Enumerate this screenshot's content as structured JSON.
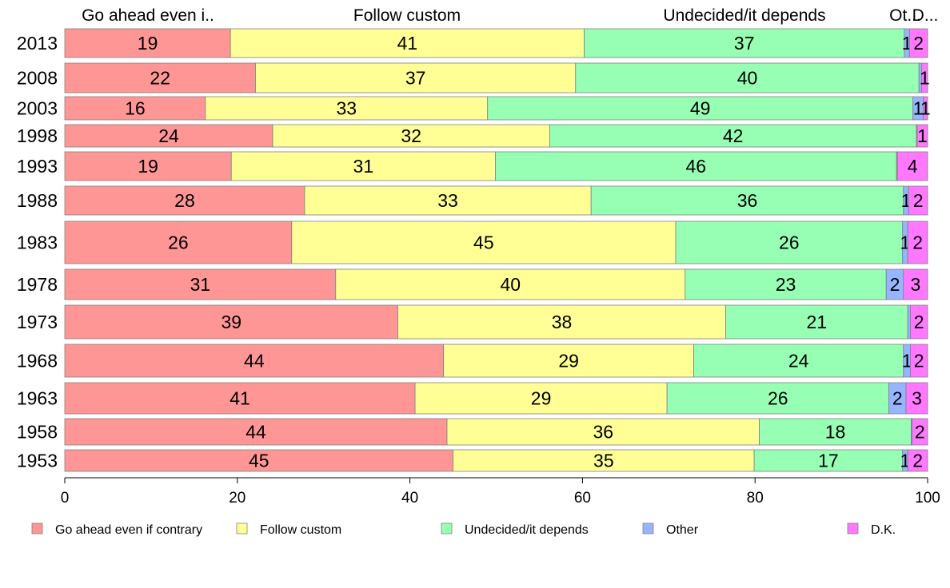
{
  "chart_data": {
    "type": "bar",
    "orientation": "horizontal",
    "stacked": true,
    "variable_width": true,
    "xlim": [
      0,
      100
    ],
    "x_ticks": [
      0,
      20,
      40,
      60,
      80,
      100
    ],
    "x_tick_labels": [
      "0",
      "20",
      "40",
      "60",
      "80",
      "100"
    ],
    "grid": false,
    "legend_position": "bottom",
    "top_labels": [
      "Go ahead even i..",
      "Follow custom",
      "Undecided/it depends",
      "Ot...",
      "D..."
    ],
    "categories": [
      "2013",
      "2008",
      "2003",
      "1998",
      "1993",
      "1988",
      "1983",
      "1978",
      "1973",
      "1968",
      "1963",
      "1958",
      "1953"
    ],
    "series": [
      {
        "name": "Go ahead even if contrary",
        "color": "#FF9696",
        "values": [
          19.2,
          22.1,
          16.3,
          24.1,
          19.3,
          27.8,
          26.3,
          31.4,
          38.6,
          43.9,
          40.6,
          44.3,
          45.0
        ]
      },
      {
        "name": "Follow custom",
        "color": "#FFFF96",
        "values": [
          41.0,
          37.1,
          32.7,
          32.1,
          30.6,
          33.2,
          44.5,
          40.5,
          38.0,
          29.0,
          29.2,
          36.2,
          34.9
        ]
      },
      {
        "name": "Undecided/it depends",
        "color": "#96FFB4",
        "values": [
          37.1,
          39.8,
          49.3,
          42.5,
          46.5,
          36.2,
          26.3,
          23.3,
          21.1,
          24.3,
          25.7,
          17.6,
          17.2
        ]
      },
      {
        "name": "Other",
        "color": "#96B4FF",
        "values": [
          0.6,
          0.3,
          1.2,
          0.1,
          0.1,
          0.6,
          0.6,
          2.0,
          0.3,
          0.8,
          2.0,
          0.1,
          0.6
        ]
      },
      {
        "name": "D.K.",
        "color": "#FF78FF",
        "values": [
          2.1,
          0.7,
          0.5,
          1.2,
          3.5,
          2.2,
          2.3,
          2.8,
          2.0,
          2.0,
          2.5,
          1.8,
          2.3
        ]
      }
    ],
    "data_labels": [
      [
        "19",
        "41",
        "37",
        "1",
        "2"
      ],
      [
        "22",
        "37",
        "40",
        "",
        "1"
      ],
      [
        "16",
        "33",
        "49",
        "1",
        "1"
      ],
      [
        "24",
        "32",
        "42",
        "",
        "1"
      ],
      [
        "19",
        "31",
        "46",
        "",
        "4"
      ],
      [
        "28",
        "33",
        "36",
        "1",
        "2"
      ],
      [
        "26",
        "45",
        "26",
        "1",
        "2"
      ],
      [
        "31",
        "40",
        "23",
        "2",
        "3"
      ],
      [
        "39",
        "38",
        "21",
        "",
        "2"
      ],
      [
        "44",
        "29",
        "24",
        "1",
        "2"
      ],
      [
        "41",
        "29",
        "26",
        "2",
        "3"
      ],
      [
        "44",
        "36",
        "18",
        "",
        "2"
      ],
      [
        "45",
        "35",
        "17",
        "1",
        "2"
      ]
    ]
  }
}
